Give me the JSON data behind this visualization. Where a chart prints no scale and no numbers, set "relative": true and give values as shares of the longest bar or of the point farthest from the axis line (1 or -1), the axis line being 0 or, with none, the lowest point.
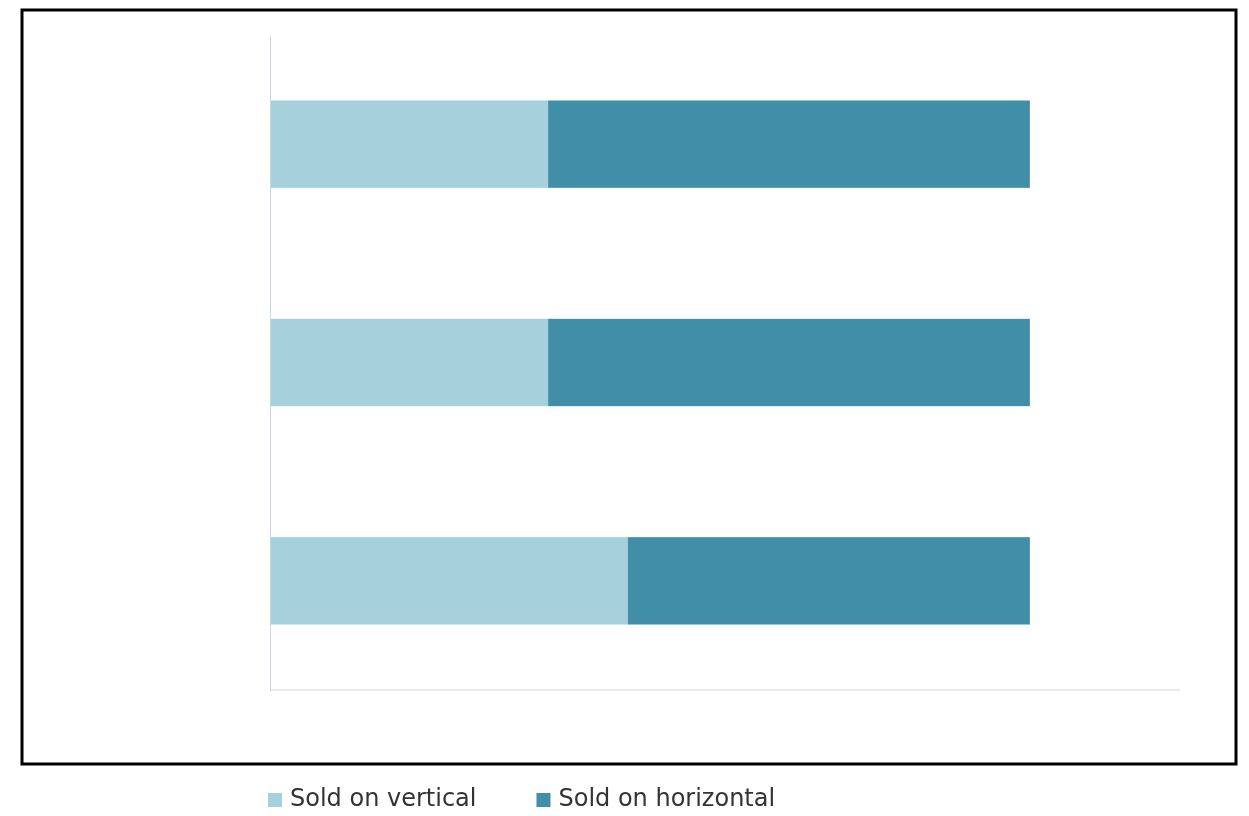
{
  "chart_data": {
    "type": "bar",
    "orientation": "horizontal",
    "stacked": true,
    "relative": true,
    "legend": "bottom",
    "categories": [
      null,
      null,
      null
    ],
    "series": [
      {
        "name": "Sold on vertical",
        "color": "#a6d0dc",
        "values": [
          0.366,
          0.366,
          0.471
        ]
      },
      {
        "name": "Sold on horizontal",
        "color": "#418ea8",
        "values": [
          0.634,
          0.634,
          0.529
        ]
      }
    ]
  }
}
